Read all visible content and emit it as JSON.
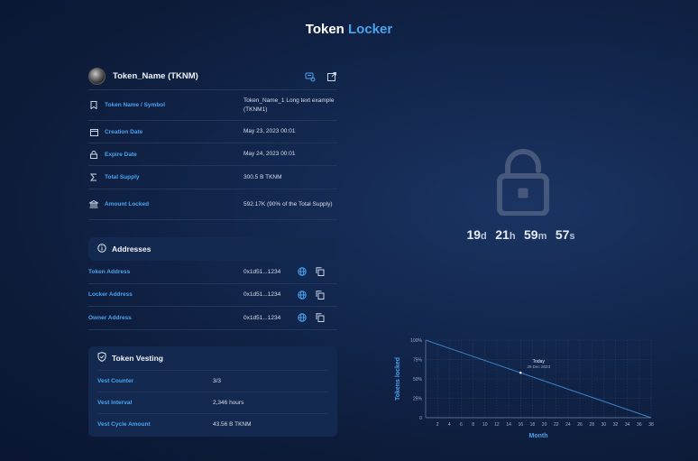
{
  "page": {
    "title_main": "Token",
    "title_accent": "Locker"
  },
  "token": {
    "name": "Token_Name (TKNM)"
  },
  "icons": {
    "avatar": "token-avatar",
    "copy_external": "external-link-icon",
    "token_view": "view-icon",
    "bookmark": "bookmark-icon",
    "calendar": "calendar-icon",
    "lock": "lock-icon",
    "sigma": "sigma-icon",
    "bank": "bank-icon",
    "info": "info-icon",
    "globe": "globe-icon",
    "copy": "copy-icon",
    "shield": "shield-icon",
    "unlock": "unlock-icon"
  },
  "info": [
    {
      "label": "Token Name / Symbol",
      "value": "Token_Name_1 Long text example (TKNM1)"
    },
    {
      "label": "Creation Date",
      "value": "May 23, 2023 00:01"
    },
    {
      "label": "Expire Date",
      "value": "May 24, 2023 00:01"
    },
    {
      "label": "Total Supply",
      "value": "300.5 B TKNM"
    },
    {
      "label": "Amount Locked",
      "value": "592.17K (90% of the Total Supply)"
    }
  ],
  "addresses": {
    "title": "Addresses",
    "rows": [
      {
        "label": "Token Address",
        "value": "0x1d51...1234"
      },
      {
        "label": "Locker Address",
        "value": "0x1d51...1234"
      },
      {
        "label": "Owner Address",
        "value": "0x1d51...1234"
      }
    ]
  },
  "vesting": {
    "title": "Token Vesting",
    "rows": [
      {
        "label": "Vest Counter",
        "value": "3/3"
      },
      {
        "label": "Vest Interval",
        "value": "2,346 hours"
      },
      {
        "label": "Vest Cycle Amount",
        "value": "43.56 B TKNM"
      }
    ]
  },
  "countdown": {
    "days": "19",
    "d": "d",
    "hours": "21",
    "h": "h",
    "minutes": "59",
    "m": "m",
    "seconds": "57",
    "s": "s"
  },
  "colors": {
    "accent": "#4aa3f0",
    "line": "#3b82c4"
  },
  "chart_data": {
    "type": "line",
    "xlabel": "Month",
    "ylabel": "Tokens locked",
    "x_ticks": [
      2,
      4,
      6,
      8,
      10,
      12,
      14,
      16,
      18,
      20,
      22,
      24,
      26,
      28,
      30,
      32,
      34,
      36,
      38
    ],
    "y_ticks": [
      "0",
      "25%",
      "50%",
      "75%",
      "100%"
    ],
    "xlim": [
      0,
      38
    ],
    "ylim": [
      0,
      100
    ],
    "series": [
      {
        "x": [
          0,
          38
        ],
        "y": [
          100,
          0
        ]
      }
    ],
    "annotation": {
      "label": "Today",
      "date": "29 Dec 2023",
      "x": 16,
      "y": 58
    }
  }
}
